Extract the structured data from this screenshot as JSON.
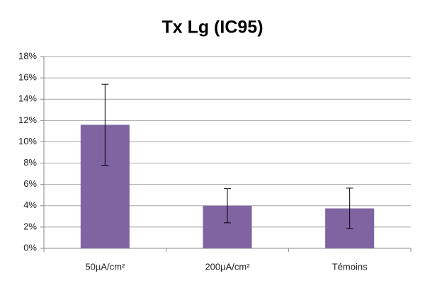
{
  "chart_data": {
    "type": "bar",
    "title": "Tx Lg (IC95)",
    "categories": [
      "50µA/cm²",
      "200µA/cm²",
      "Témoins"
    ],
    "values": [
      11.6,
      4.0,
      3.75
    ],
    "errors": [
      3.8,
      1.6,
      1.9
    ],
    "color": "#8064a2",
    "ylim": [
      0,
      18
    ],
    "yticks": [
      {
        "value": 0,
        "label": "0%"
      },
      {
        "value": 2,
        "label": "2%"
      },
      {
        "value": 4,
        "label": "4%"
      },
      {
        "value": 6,
        "label": "6%"
      },
      {
        "value": 8,
        "label": "8%"
      },
      {
        "value": 10,
        "label": "10%"
      },
      {
        "value": 12,
        "label": "12%"
      },
      {
        "value": 14,
        "label": "14%"
      },
      {
        "value": 16,
        "label": "16%"
      },
      {
        "value": 18,
        "label": "18%"
      }
    ],
    "grid": true
  }
}
